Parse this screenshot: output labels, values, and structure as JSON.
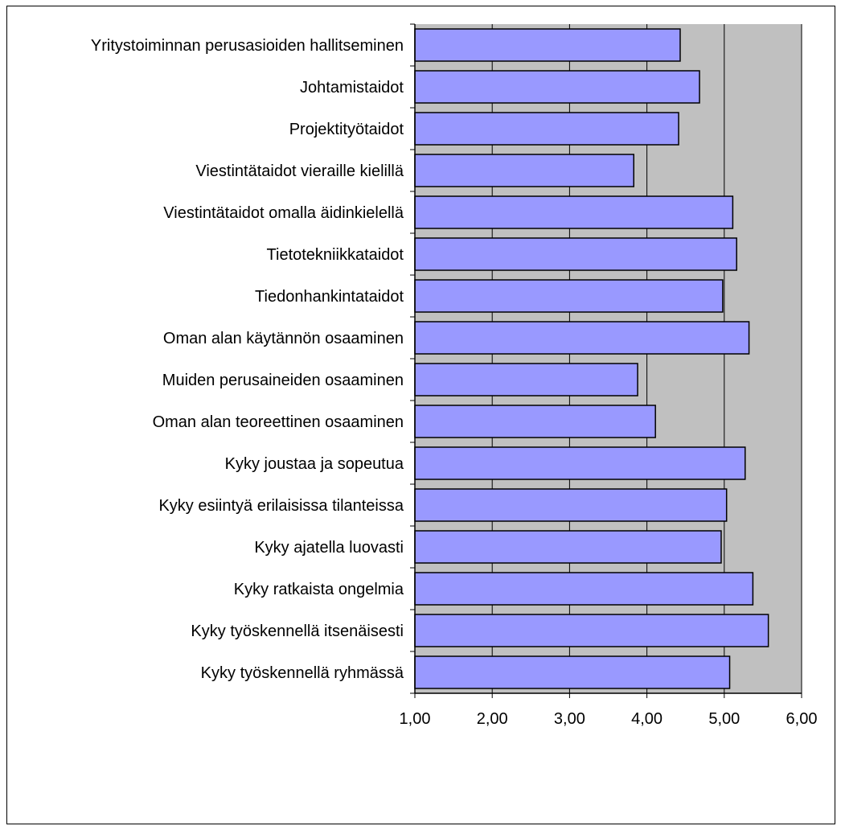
{
  "chart_data": {
    "type": "bar",
    "orientation": "horizontal",
    "title": "",
    "xlabel": "",
    "ylabel": "",
    "categories": [
      "Yritystoiminnan perusasioiden hallitseminen",
      "Johtamistaidot",
      "Projektityötaidot",
      "Viestintätaidot vieraille kielillä",
      "Viestintätaidot omalla äidinkielellä",
      "Tietotekniikkataidot",
      "Tiedonhankintataidot",
      "Oman alan käytännön osaaminen",
      "Muiden perusaineiden osaaminen",
      "Oman alan teoreettinen osaaminen",
      "Kyky joustaa ja sopeutua",
      "Kyky esiintyä erilaisissa tilanteissa",
      "Kyky ajatella luovasti",
      "Kyky ratkaista ongelmia",
      "Kyky työskennellä itsenäisesti",
      "Kyky työskennellä ryhmässä"
    ],
    "values": [
      4.43,
      4.68,
      4.41,
      3.83,
      5.11,
      5.16,
      4.98,
      5.32,
      3.88,
      4.11,
      5.27,
      5.03,
      4.96,
      5.37,
      5.57,
      5.07
    ],
    "xlim": [
      1,
      6
    ],
    "x_ticks": [
      "1,00",
      "2,00",
      "3,00",
      "4,00",
      "5,00",
      "6,00"
    ],
    "grid": true,
    "legend": "none",
    "colors": {
      "bar_fill": "#9999ff",
      "bar_stroke": "#000000",
      "plot_background": "#c0c0c0",
      "gridline": "#000000"
    }
  }
}
